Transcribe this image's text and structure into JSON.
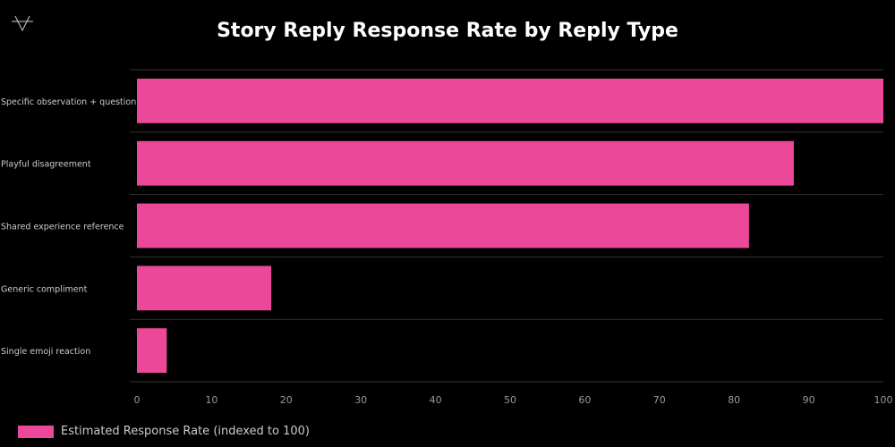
{
  "chart_data": {
    "type": "bar",
    "orientation": "horizontal",
    "title": "Story Reply Response Rate by Reply Type",
    "categories": [
      "Specific observation + question",
      "Playful disagreement",
      "Shared experience reference",
      "Generic compliment",
      "Single emoji reaction"
    ],
    "series": [
      {
        "name": "Estimated Response Rate (indexed to 100)",
        "values": [
          100,
          88,
          82,
          18,
          4
        ]
      }
    ],
    "xlim": [
      0,
      100
    ],
    "xticks": [
      0,
      10,
      20,
      30,
      40,
      50,
      60,
      70,
      80,
      90,
      100
    ],
    "grid": "horizontal band separators",
    "legend": "bottom-left",
    "colors": {
      "bar": "#ec4899",
      "background": "#000000",
      "grid": "#333333",
      "text": "#cccccc"
    }
  },
  "logo": {
    "icon": "triangle-logo-icon"
  }
}
